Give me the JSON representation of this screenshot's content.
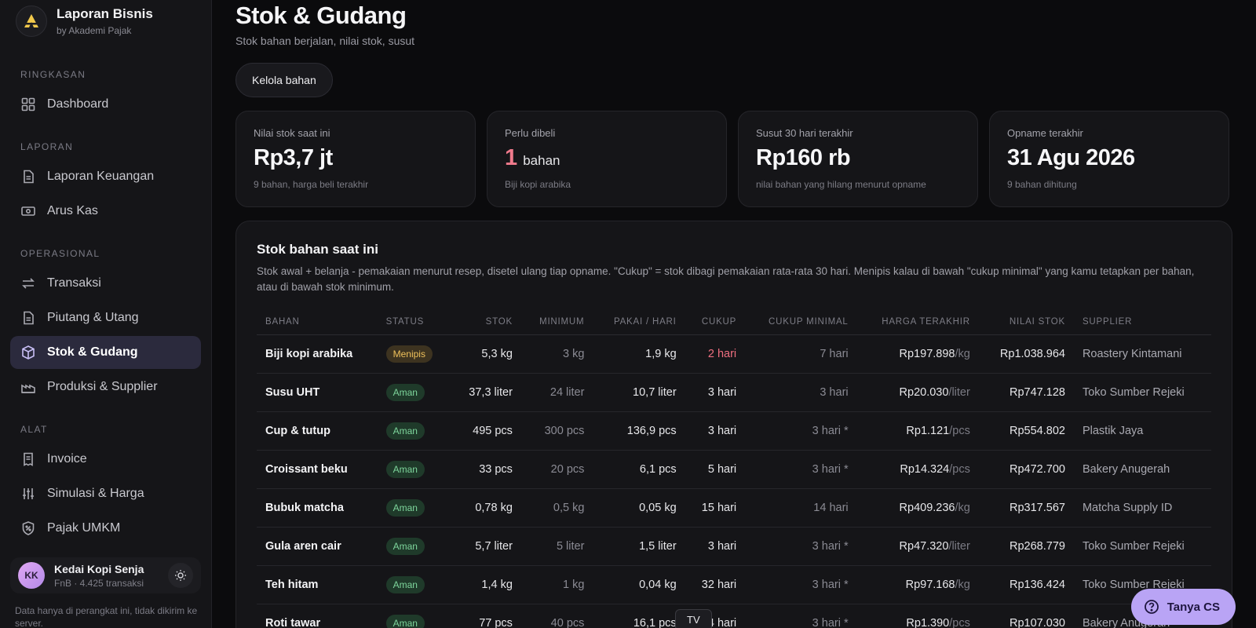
{
  "brand": {
    "title": "Laporan Bisnis",
    "subtitle": "by Akademi Pajak"
  },
  "sidebar": {
    "sections": [
      {
        "label": "RINGKASAN",
        "items": [
          {
            "label": "Dashboard",
            "icon": "dashboard-icon"
          }
        ]
      },
      {
        "label": "LAPORAN",
        "items": [
          {
            "label": "Laporan Keuangan",
            "icon": "document-icon"
          },
          {
            "label": "Arus Kas",
            "icon": "cash-icon"
          }
        ]
      },
      {
        "label": "OPERASIONAL",
        "items": [
          {
            "label": "Transaksi",
            "icon": "transfer-icon"
          },
          {
            "label": "Piutang & Utang",
            "icon": "document-icon"
          },
          {
            "label": "Stok & Gudang",
            "icon": "box-icon",
            "active": true
          },
          {
            "label": "Produksi & Supplier",
            "icon": "factory-icon"
          }
        ]
      },
      {
        "label": "ALAT",
        "items": [
          {
            "label": "Invoice",
            "icon": "receipt-icon"
          },
          {
            "label": "Simulasi & Harga",
            "icon": "sliders-icon"
          },
          {
            "label": "Pajak UMKM",
            "icon": "tax-shield-icon"
          }
        ]
      }
    ]
  },
  "user": {
    "initials": "KK",
    "name": "Kedai Kopi Senja",
    "meta": "FnB · 4.425 transaksi"
  },
  "footnote": "Data hanya di perangkat ini, tidak dikirim ke server.",
  "page": {
    "title": "Stok & Gudang",
    "subtitle": "Stok bahan berjalan, nilai stok, susut",
    "kelola_label": "Kelola bahan"
  },
  "stats": [
    {
      "label": "Nilai stok saat ini",
      "value": "Rp3,7 jt",
      "note": "9 bahan, harga beli terakhir"
    },
    {
      "label": "Perlu dibeli",
      "value_number": "1",
      "value_unit": "bahan",
      "note": "Biji kopi arabika"
    },
    {
      "label": "Susut 30 hari terakhir",
      "value": "Rp160 rb",
      "note": "nilai bahan yang hilang menurut opname"
    },
    {
      "label": "Opname terakhir",
      "value": "31 Agu 2026",
      "note": "9 bahan dihitung"
    }
  ],
  "panel": {
    "title": "Stok bahan saat ini",
    "description": "Stok awal + belanja - pemakaian menurut resep, disetel ulang tiap opname. \"Cukup\" = stok dibagi pemakaian rata-rata 30 hari. Menipis kalau di bawah \"cukup minimal\" yang kamu tetapkan per bahan, atau di bawah stok minimum."
  },
  "table": {
    "headers": [
      "BAHAN",
      "STATUS",
      "STOK",
      "MINIMUM",
      "PAKAI / HARI",
      "CUKUP",
      "CUKUP MINIMAL",
      "HARGA TERAKHIR",
      "NILAI STOK",
      "SUPPLIER"
    ],
    "rows": [
      {
        "bahan": "Biji kopi arabika",
        "status": "Menipis",
        "stok": "5,3 kg",
        "minimum": "3 kg",
        "pakai": "1,9 kg",
        "cukup": "2 hari",
        "cukup_min": "7 hari",
        "harga": "Rp197.898",
        "harga_unit": "/kg",
        "nilai": "Rp1.038.964",
        "supplier": "Roastery Kintamani",
        "warn": true
      },
      {
        "bahan": "Susu UHT",
        "status": "Aman",
        "stok": "37,3 liter",
        "minimum": "24 liter",
        "pakai": "10,7 liter",
        "cukup": "3 hari",
        "cukup_min": "3 hari",
        "harga": "Rp20.030",
        "harga_unit": "/liter",
        "nilai": "Rp747.128",
        "supplier": "Toko Sumber Rejeki"
      },
      {
        "bahan": "Cup & tutup",
        "status": "Aman",
        "stok": "495 pcs",
        "minimum": "300 pcs",
        "pakai": "136,9 pcs",
        "cukup": "3 hari",
        "cukup_min": "3 hari *",
        "harga": "Rp1.121",
        "harga_unit": "/pcs",
        "nilai": "Rp554.802",
        "supplier": "Plastik Jaya"
      },
      {
        "bahan": "Croissant beku",
        "status": "Aman",
        "stok": "33 pcs",
        "minimum": "20 pcs",
        "pakai": "6,1 pcs",
        "cukup": "5 hari",
        "cukup_min": "3 hari *",
        "harga": "Rp14.324",
        "harga_unit": "/pcs",
        "nilai": "Rp472.700",
        "supplier": "Bakery Anugerah"
      },
      {
        "bahan": "Bubuk matcha",
        "status": "Aman",
        "stok": "0,78 kg",
        "minimum": "0,5 kg",
        "pakai": "0,05 kg",
        "cukup": "15 hari",
        "cukup_min": "14 hari",
        "harga": "Rp409.236",
        "harga_unit": "/kg",
        "nilai": "Rp317.567",
        "supplier": "Matcha Supply ID"
      },
      {
        "bahan": "Gula aren cair",
        "status": "Aman",
        "stok": "5,7 liter",
        "minimum": "5 liter",
        "pakai": "1,5 liter",
        "cukup": "3 hari",
        "cukup_min": "3 hari *",
        "harga": "Rp47.320",
        "harga_unit": "/liter",
        "nilai": "Rp268.779",
        "supplier": "Toko Sumber Rejeki"
      },
      {
        "bahan": "Teh hitam",
        "status": "Aman",
        "stok": "1,4 kg",
        "minimum": "1 kg",
        "pakai": "0,04 kg",
        "cukup": "32 hari",
        "cukup_min": "3 hari *",
        "harga": "Rp97.168",
        "harga_unit": "/kg",
        "nilai": "Rp136.424",
        "supplier": "Toko Sumber Rejeki"
      },
      {
        "bahan": "Roti tawar",
        "status": "Aman",
        "stok": "77 pcs",
        "minimum": "40 pcs",
        "pakai": "16,1 pcs",
        "cukup": "4 hari",
        "cukup_min": "3 hari *",
        "harga": "Rp1.390",
        "harga_unit": "/pcs",
        "nilai": "Rp107.030",
        "supplier": "Bakery Anugerah"
      }
    ]
  },
  "help_button": "Tanya CS",
  "tooltip": "TV",
  "colors": {
    "accent": "#b9a4f5",
    "warn": "#ef6f80",
    "ok": "#7ed69c",
    "brand_logo": "#f1c84b"
  }
}
